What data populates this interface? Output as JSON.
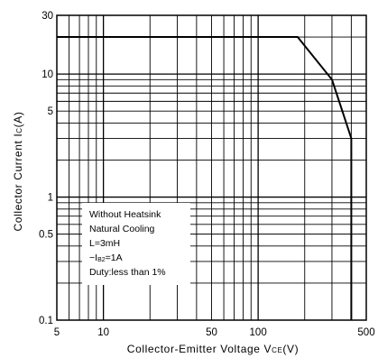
{
  "chart_data": {
    "type": "line",
    "title": "",
    "xlabel": "Collector-Emitter Voltage",
    "xlabel_sub": "VCE(V)",
    "ylabel": "Collector Current",
    "ylabel_sub": "IC(A)",
    "xscale": "log",
    "yscale": "log",
    "xlim": [
      5,
      500
    ],
    "ylim": [
      0.1,
      30
    ],
    "grid": true,
    "x_ticks": [
      {
        "v": 5,
        "label": "5"
      },
      {
        "v": 10,
        "label": "10"
      },
      {
        "v": 50,
        "label": "50"
      },
      {
        "v": 100,
        "label": "100"
      },
      {
        "v": 500,
        "label": "500"
      }
    ],
    "y_ticks": [
      {
        "v": 0.1,
        "label": "0.1"
      },
      {
        "v": 0.5,
        "label": "0.5"
      },
      {
        "v": 1,
        "label": "1"
      },
      {
        "v": 5,
        "label": "5"
      },
      {
        "v": 10,
        "label": "10"
      },
      {
        "v": 30,
        "label": "30"
      }
    ],
    "series": [
      {
        "points": [
          {
            "x": 5,
            "y": 20
          },
          {
            "x": 180,
            "y": 20
          },
          {
            "x": 300,
            "y": 9
          },
          {
            "x": 400,
            "y": 3
          },
          {
            "x": 400,
            "y": 0.1
          }
        ],
        "color": "#000000"
      }
    ],
    "annotations": [
      "Without Heatsink",
      "Natural Cooling",
      "L=3mH",
      "−IB2=1A",
      "Duty:less than 1%"
    ]
  }
}
